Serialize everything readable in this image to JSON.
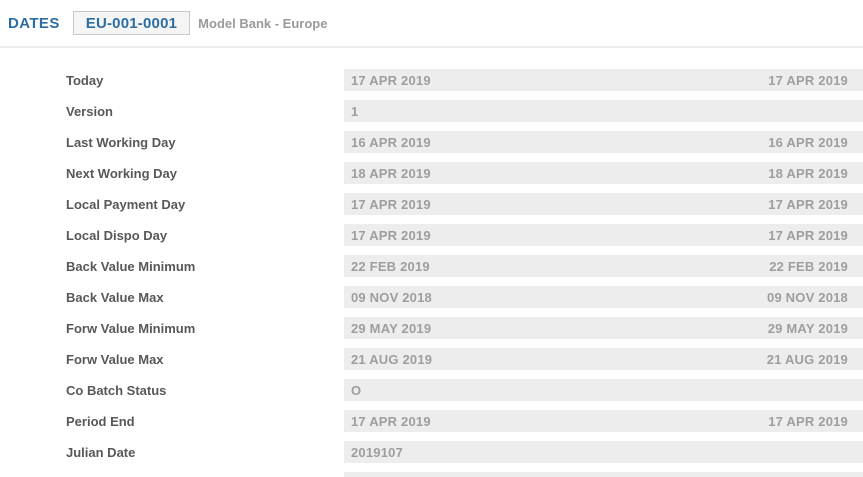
{
  "header": {
    "app_title": "DATES",
    "record_id": "EU-001-0001",
    "company_name": "Model Bank - Europe"
  },
  "colors": {
    "accent_blue": "#2e6da4",
    "label_gray": "#57585a",
    "value_gray": "#9e9e9e",
    "field_background": "#ededed",
    "divider": "#ececec",
    "record_box_border": "#c8c8c8",
    "record_box_background": "#f5f5f5"
  },
  "fields": [
    {
      "label": "Today",
      "value": "17 APR 2019",
      "value_right": "17 APR 2019"
    },
    {
      "label": "Version",
      "value": "1",
      "value_right": ""
    },
    {
      "label": "Last Working Day",
      "value": "16 APR 2019",
      "value_right": "16 APR 2019"
    },
    {
      "label": "Next Working Day",
      "value": "18 APR 2019",
      "value_right": "18 APR 2019"
    },
    {
      "label": "Local Payment Day",
      "value": "17 APR 2019",
      "value_right": "17 APR 2019"
    },
    {
      "label": "Local Dispo Day",
      "value": "17 APR 2019",
      "value_right": "17 APR 2019"
    },
    {
      "label": "Back Value Minimum",
      "value": "22 FEB 2019",
      "value_right": "22 FEB 2019"
    },
    {
      "label": "Back Value Max",
      "value": "09 NOV 2018",
      "value_right": "09 NOV 2018"
    },
    {
      "label": "Forw Value Minimum",
      "value": "29 MAY 2019",
      "value_right": "29 MAY 2019"
    },
    {
      "label": "Forw Value Max",
      "value": "21 AUG 2019",
      "value_right": "21 AUG 2019"
    },
    {
      "label": "Co Batch Status",
      "value": "O",
      "value_right": ""
    },
    {
      "label": "Period End",
      "value": "17 APR 2019",
      "value_right": "17 APR 2019"
    },
    {
      "label": "Julian Date",
      "value": "2019107",
      "value_right": ""
    }
  ]
}
